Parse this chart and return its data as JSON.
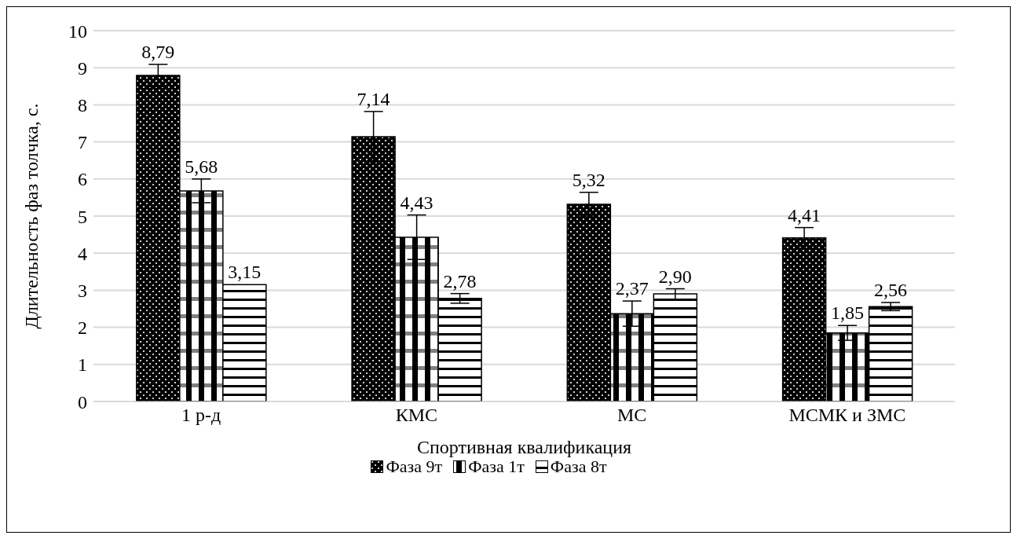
{
  "chart_data": {
    "type": "bar",
    "xlabel": "Спортивная квалификация",
    "ylabel": "Длительность фаз толчка, с.",
    "categories": [
      "1 р-д",
      "КМС",
      "МС",
      "МСМК и ЗМС"
    ],
    "series": [
      {
        "name": "Фаза 9т",
        "color": "#000000",
        "values": [
          8.79,
          7.14,
          5.32,
          4.41
        ],
        "errors": [
          0.3,
          0.68,
          0.32,
          0.28
        ],
        "value_labels": [
          "8,79",
          "7,14",
          "5,32",
          "4,41"
        ]
      },
      {
        "name": "Фаза 1т",
        "color": "#000000",
        "values": [
          5.68,
          4.43,
          2.37,
          1.85
        ],
        "errors": [
          0.32,
          0.6,
          0.34,
          0.2
        ],
        "value_labels": [
          "5,68",
          "4,43",
          "2,37",
          "1,85"
        ]
      },
      {
        "name": "Фаза 8т",
        "color": "#000000",
        "values": [
          3.15,
          2.78,
          2.9,
          2.56
        ],
        "errors": [
          null,
          0.13,
          0.14,
          0.11
        ],
        "value_labels": [
          "3,15",
          "2,78",
          "2,90",
          "2,56"
        ]
      }
    ],
    "ylim": [
      0,
      10
    ],
    "yticks": [
      0,
      1,
      2,
      3,
      4,
      5,
      6,
      7,
      8,
      9,
      10
    ],
    "grid": "y",
    "legend": "bottom"
  }
}
